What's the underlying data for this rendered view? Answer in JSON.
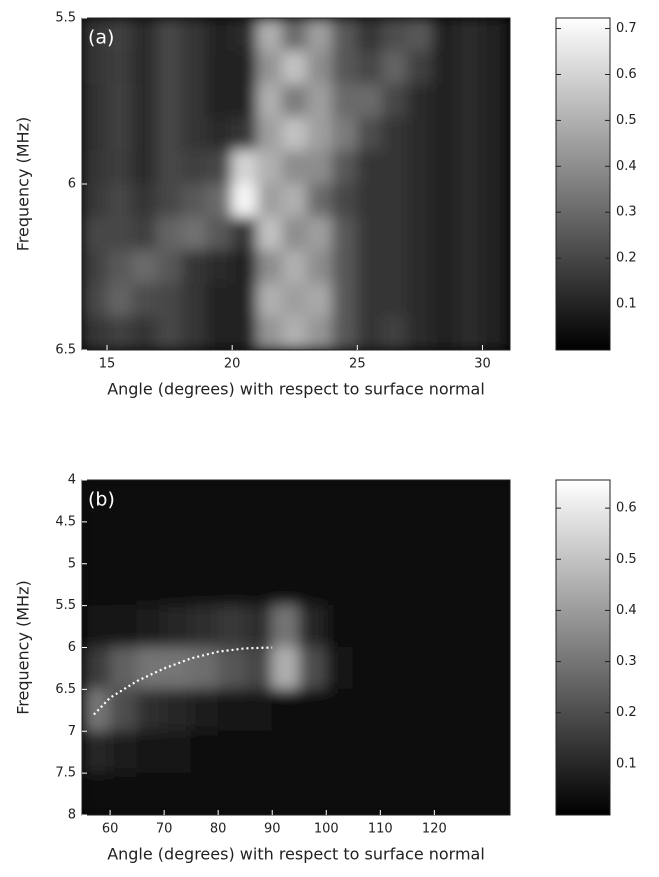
{
  "chart_data": [
    {
      "type": "heatmap",
      "panel_label": "(a)",
      "x_label": "Angle (degrees) with respect to surface normal",
      "y_label": "Frequency (MHz)",
      "xlim": [
        14,
        31.1
      ],
      "xticks": [
        15,
        20,
        25,
        30
      ],
      "ylim": [
        6.5,
        5.5
      ],
      "yticks": [
        5.5,
        6,
        6.5
      ],
      "x": [
        14.5,
        15.5,
        16.5,
        17.5,
        18.5,
        19.5,
        20.5,
        21.5,
        22.5,
        23.5,
        24.5,
        25.5,
        26.5,
        27.5,
        28.5,
        29.5,
        30.5
      ],
      "y": [
        5.55,
        5.65,
        5.75,
        5.85,
        5.95,
        6.05,
        6.15,
        6.25,
        6.35,
        6.45
      ],
      "z": [
        [
          0.15,
          0.18,
          0.12,
          0.2,
          0.15,
          0.1,
          0.12,
          0.5,
          0.3,
          0.45,
          0.25,
          0.15,
          0.22,
          0.25,
          0.1,
          0.12,
          0.1
        ],
        [
          0.15,
          0.17,
          0.12,
          0.2,
          0.15,
          0.1,
          0.1,
          0.42,
          0.55,
          0.4,
          0.25,
          0.2,
          0.28,
          0.18,
          0.1,
          0.12,
          0.1
        ],
        [
          0.14,
          0.18,
          0.12,
          0.2,
          0.15,
          0.1,
          0.1,
          0.5,
          0.35,
          0.45,
          0.3,
          0.3,
          0.2,
          0.12,
          0.1,
          0.12,
          0.1
        ],
        [
          0.14,
          0.18,
          0.12,
          0.2,
          0.15,
          0.12,
          0.15,
          0.45,
          0.55,
          0.45,
          0.35,
          0.22,
          0.15,
          0.12,
          0.1,
          0.12,
          0.1
        ],
        [
          0.15,
          0.17,
          0.12,
          0.2,
          0.18,
          0.2,
          0.6,
          0.5,
          0.4,
          0.4,
          0.25,
          0.15,
          0.15,
          0.12,
          0.1,
          0.12,
          0.1
        ],
        [
          0.16,
          0.2,
          0.15,
          0.2,
          0.25,
          0.3,
          0.7,
          0.45,
          0.5,
          0.3,
          0.2,
          0.15,
          0.15,
          0.12,
          0.1,
          0.12,
          0.1
        ],
        [
          0.2,
          0.2,
          0.18,
          0.28,
          0.32,
          0.25,
          0.15,
          0.55,
          0.4,
          0.45,
          0.25,
          0.15,
          0.15,
          0.12,
          0.1,
          0.12,
          0.1
        ],
        [
          0.18,
          0.25,
          0.3,
          0.25,
          0.15,
          0.12,
          0.1,
          0.4,
          0.5,
          0.4,
          0.25,
          0.15,
          0.15,
          0.12,
          0.1,
          0.12,
          0.1
        ],
        [
          0.2,
          0.28,
          0.22,
          0.2,
          0.15,
          0.1,
          0.1,
          0.5,
          0.45,
          0.48,
          0.25,
          0.15,
          0.15,
          0.12,
          0.1,
          0.12,
          0.1
        ],
        [
          0.15,
          0.18,
          0.15,
          0.2,
          0.15,
          0.1,
          0.1,
          0.42,
          0.5,
          0.42,
          0.25,
          0.15,
          0.18,
          0.12,
          0.1,
          0.12,
          0.1
        ]
      ],
      "colorbar": {
        "lim": [
          0,
          0.723
        ],
        "ticks": [
          0.1,
          0.2,
          0.3,
          0.4,
          0.5,
          0.6,
          0.7
        ]
      }
    },
    {
      "type": "heatmap",
      "panel_label": "(b)",
      "x_label": "Angle (degrees) with respect to surface normal",
      "y_label": "Frequency (MHz)",
      "xlim": [
        54.8,
        134
      ],
      "xticks": [
        60,
        70,
        80,
        90,
        100,
        110,
        120
      ],
      "ylim": [
        8,
        4
      ],
      "yticks": [
        4,
        4.5,
        5,
        5.5,
        6,
        6.5,
        7,
        7.5,
        8
      ],
      "x": [
        57.5,
        62.5,
        67.5,
        72.5,
        77.5,
        82.5,
        87.5,
        92.5,
        97.5,
        102.5,
        107.5,
        112.5,
        117.5,
        122.5,
        127.5,
        132.5
      ],
      "y": [
        4.25,
        4.75,
        5.25,
        5.75,
        6.25,
        6.75,
        7.25,
        7.75
      ],
      "z": [
        [
          0.02,
          0.02,
          0.02,
          0.02,
          0.02,
          0.02,
          0.02,
          0.02,
          0.02,
          0.02,
          0.02,
          0.02,
          0.02,
          0.02,
          0.02,
          0.02
        ],
        [
          0.02,
          0.02,
          0.02,
          0.02,
          0.02,
          0.02,
          0.02,
          0.02,
          0.02,
          0.02,
          0.02,
          0.02,
          0.02,
          0.02,
          0.02,
          0.02
        ],
        [
          0.03,
          0.03,
          0.03,
          0.03,
          0.03,
          0.03,
          0.03,
          0.03,
          0.03,
          0.02,
          0.02,
          0.02,
          0.02,
          0.02,
          0.02,
          0.02
        ],
        [
          0.05,
          0.06,
          0.08,
          0.1,
          0.12,
          0.14,
          0.12,
          0.3,
          0.1,
          0.03,
          0.02,
          0.02,
          0.02,
          0.02,
          0.02,
          0.02
        ],
        [
          0.15,
          0.25,
          0.3,
          0.3,
          0.28,
          0.22,
          0.18,
          0.45,
          0.2,
          0.05,
          0.03,
          0.02,
          0.02,
          0.02,
          0.02,
          0.02
        ],
        [
          0.3,
          0.2,
          0.12,
          0.1,
          0.08,
          0.06,
          0.05,
          0.04,
          0.03,
          0.02,
          0.02,
          0.02,
          0.02,
          0.02,
          0.02,
          0.02
        ],
        [
          0.1,
          0.08,
          0.06,
          0.05,
          0.04,
          0.03,
          0.02,
          0.02,
          0.02,
          0.02,
          0.02,
          0.02,
          0.02,
          0.02,
          0.02,
          0.02
        ],
        [
          0.02,
          0.02,
          0.02,
          0.02,
          0.02,
          0.02,
          0.02,
          0.02,
          0.02,
          0.02,
          0.02,
          0.02,
          0.02,
          0.02,
          0.02,
          0.02
        ]
      ],
      "series": [
        {
          "color": "#ffffff",
          "x": [
            57,
            60,
            65,
            70,
            75,
            80,
            85,
            90
          ],
          "values": [
            6.8,
            6.6,
            6.4,
            6.25,
            6.13,
            6.05,
            6.01,
            6.0
          ]
        }
      ],
      "colorbar": {
        "lim": [
          0,
          0.655
        ],
        "ticks": [
          0.1,
          0.2,
          0.3,
          0.4,
          0.5,
          0.6
        ]
      }
    }
  ]
}
